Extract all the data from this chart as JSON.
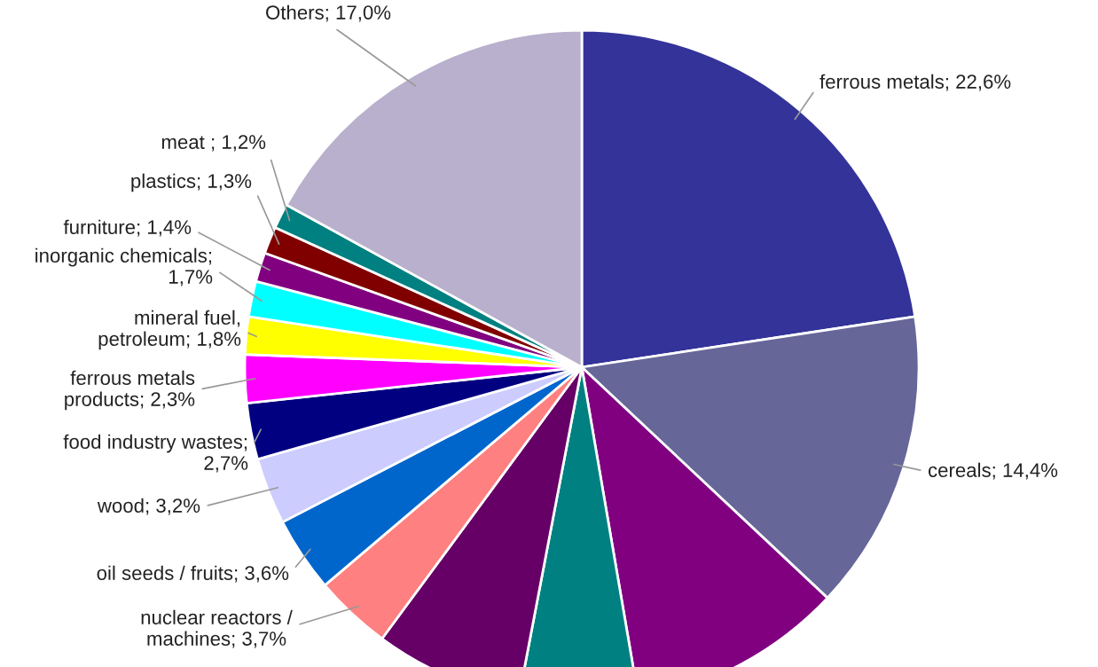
{
  "chart_data": {
    "type": "pie",
    "categories": [
      "ferrous metals; 22,6%",
      "cereals; 14,4%",
      null,
      null,
      null,
      "nuclear reactors /\nmachines; 3,7%",
      "oil seeds / fruits; 3,6%",
      "wood; 3,2%",
      "food industry wastes;\n2,7%",
      "ferrous metals\nproducts; 2,3%",
      "mineral fuel,\npetroleum; 1,8%",
      "inorganic chemicals;\n1,7%",
      "furniture; 1,4%",
      "plastics; 1,3%",
      "meat ; 1,2%",
      "Others; 17,0%"
    ],
    "values": [
      22.6,
      14.4,
      10.3,
      5.7,
      7.1,
      3.7,
      3.6,
      3.2,
      2.7,
      2.3,
      1.8,
      1.7,
      1.4,
      1.3,
      1.2,
      17.0
    ],
    "colors": [
      "#333399",
      "#666699",
      "#800080",
      "#008080",
      "#660066",
      "#ff8080",
      "#0066cc",
      "#ccccff",
      "#000080",
      "#ff00ff",
      "#ffff00",
      "#00ffff",
      "#800080",
      "#800000",
      "#008080",
      "#b8b0cc"
    ]
  }
}
